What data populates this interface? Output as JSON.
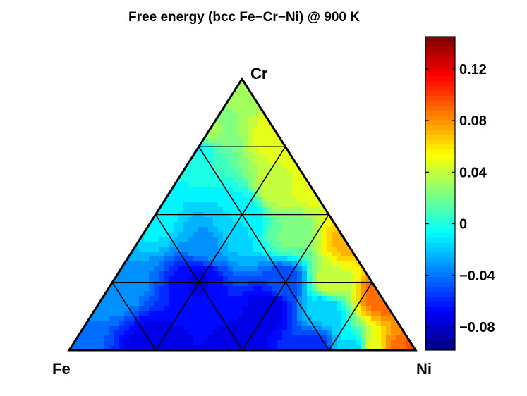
{
  "chart_data": {
    "type": "ternary-contour",
    "title": "Free energy (bcc Fe−Cr−Ni) @ 900 K",
    "corners": {
      "left": "Fe",
      "top": "Cr",
      "right": "Ni"
    },
    "colorbar": {
      "colormap": "jet",
      "range": [
        -0.098,
        0.145
      ],
      "ticks": [
        {
          "value": 0.12,
          "label": "0.12"
        },
        {
          "value": 0.08,
          "label": "0.08"
        },
        {
          "value": 0.04,
          "label": "0.04"
        },
        {
          "value": 0,
          "label": "0"
        },
        {
          "value": -0.04,
          "label": "−0.04"
        },
        {
          "value": -0.08,
          "label": "−0.08"
        }
      ]
    },
    "grid_divisions": 4,
    "grid_on": true,
    "field_points": [
      {
        "fe": 1.0,
        "cr": 0.0,
        "ni": 0.0,
        "value": -0.04
      },
      {
        "fe": 0.75,
        "cr": 0.0,
        "ni": 0.25,
        "value": -0.075
      },
      {
        "fe": 0.5,
        "cr": 0.0,
        "ni": 0.5,
        "value": -0.075
      },
      {
        "fe": 0.3,
        "cr": 0.0,
        "ni": 0.7,
        "value": -0.06
      },
      {
        "fe": 0.18,
        "cr": 0.0,
        "ni": 0.82,
        "value": -0.015
      },
      {
        "fe": 0.12,
        "cr": 0.0,
        "ni": 0.88,
        "value": 0.05
      },
      {
        "fe": 0.06,
        "cr": 0.0,
        "ni": 0.94,
        "value": 0.085
      },
      {
        "fe": 0.0,
        "cr": 0.0,
        "ni": 1.0,
        "value": 0.1
      },
      {
        "fe": 0.75,
        "cr": 0.25,
        "ni": 0.0,
        "value": -0.03
      },
      {
        "fe": 0.5,
        "cr": 0.5,
        "ni": 0.0,
        "value": -0.01
      },
      {
        "fe": 0.25,
        "cr": 0.75,
        "ni": 0.0,
        "value": -0.005
      },
      {
        "fe": 0.2,
        "cr": 0.8,
        "ni": 0.0,
        "value": 0.03
      },
      {
        "fe": 0.0,
        "cr": 1.0,
        "ni": 0.0,
        "value": 0.03
      },
      {
        "fe": 0.0,
        "cr": 0.78,
        "ni": 0.22,
        "value": 0.05
      },
      {
        "fe": 0.0,
        "cr": 0.62,
        "ni": 0.38,
        "value": 0.05
      },
      {
        "fe": 0.0,
        "cr": 0.4,
        "ni": 0.6,
        "value": 0.07
      },
      {
        "fe": 0.0,
        "cr": 0.2,
        "ni": 0.8,
        "value": 0.09
      },
      {
        "fe": 0.5,
        "cr": 0.25,
        "ni": 0.25,
        "value": -0.07
      },
      {
        "fe": 0.25,
        "cr": 0.5,
        "ni": 0.25,
        "value": -0.01
      },
      {
        "fe": 0.25,
        "cr": 0.25,
        "ni": 0.5,
        "value": -0.05
      },
      {
        "fe": 0.3,
        "cr": 0.45,
        "ni": 0.25,
        "value": -0.015
      },
      {
        "fe": 0.15,
        "cr": 0.42,
        "ni": 0.43,
        "value": 0.02
      },
      {
        "fe": 0.1,
        "cr": 0.6,
        "ni": 0.3,
        "value": 0.04
      },
      {
        "fe": 0.12,
        "cr": 0.25,
        "ni": 0.63,
        "value": 0.04
      },
      {
        "fe": 0.19,
        "cr": 0.15,
        "ni": 0.66,
        "value": -0.02
      },
      {
        "fe": 0.35,
        "cr": 0.15,
        "ni": 0.5,
        "value": -0.075
      },
      {
        "fe": 0.4,
        "cr": 0.4,
        "ni": 0.2,
        "value": -0.03
      }
    ]
  }
}
